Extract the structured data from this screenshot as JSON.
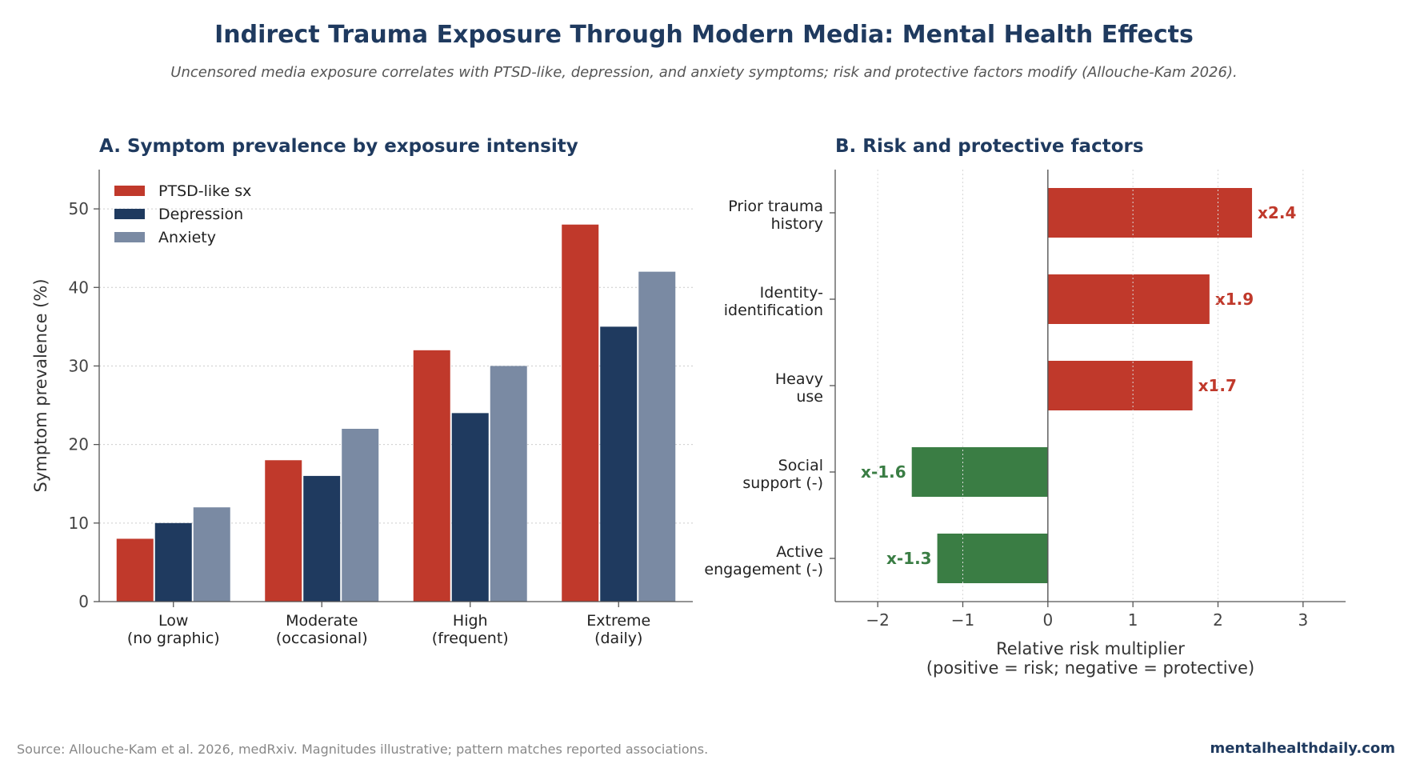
{
  "title": "Indirect Trauma Exposure Through Modern Media: Mental Health Effects",
  "subtitle": "Uncensored media exposure correlates with PTSD-like, depression, and anxiety symptoms; risk and protective factors modify (Allouche-Kam 2026).",
  "footer": {
    "source": "Source: Allouche-Kam et al. 2026, medRxiv. Magnitudes illustrative; pattern matches reported associations.",
    "brand": "mentalhealthdaily.com"
  },
  "colors": {
    "ptsd": "#c0392b",
    "depression": "#1f3a5f",
    "anxiety": "#7a8aa3",
    "protective": "#3a7d44",
    "title": "#1f3a5f"
  },
  "chart_data": [
    {
      "type": "bar",
      "title": "A. Symptom prevalence by exposure intensity",
      "xlabel": "",
      "ylabel": "Symptom prevalence (%)",
      "categories": [
        [
          "Low",
          "(no graphic)"
        ],
        [
          "Moderate",
          "(occasional)"
        ],
        [
          "High",
          "(frequent)"
        ],
        [
          "Extreme",
          "(daily)"
        ]
      ],
      "series": [
        {
          "name": "PTSD-like sx",
          "color": "#c0392b",
          "values": [
            8,
            18,
            32,
            48
          ]
        },
        {
          "name": "Depression",
          "color": "#1f3a5f",
          "values": [
            10,
            16,
            24,
            35
          ]
        },
        {
          "name": "Anxiety",
          "color": "#7a8aa3",
          "values": [
            12,
            22,
            30,
            42
          ]
        }
      ],
      "ylim": [
        0,
        55
      ],
      "yticks": [
        0,
        10,
        20,
        30,
        40,
        50
      ],
      "grid": true,
      "legend_position": "top-left"
    },
    {
      "type": "bar",
      "orientation": "horizontal",
      "title": "B. Risk and protective factors",
      "xlabel": [
        "Relative risk multiplier",
        "(positive = risk; negative = protective)"
      ],
      "ylabel": "",
      "categories": [
        [
          "Prior trauma",
          "history"
        ],
        [
          "Identity-",
          "identification"
        ],
        [
          "Heavy",
          "use"
        ],
        [
          "Social",
          "support (-)"
        ],
        [
          "Active",
          "engagement (-)"
        ]
      ],
      "values": [
        2.4,
        1.9,
        1.7,
        -1.6,
        -1.3
      ],
      "labels": [
        "x2.4",
        "x1.9",
        "x1.7",
        "x-1.6",
        "x-1.3"
      ],
      "xlim": [
        -2.5,
        3.5
      ],
      "xticks": [
        -2,
        -1,
        0,
        1,
        2,
        3
      ],
      "xticklabels": [
        "−2",
        "−1",
        "0",
        "1",
        "2",
        "3"
      ],
      "grid": true
    }
  ]
}
